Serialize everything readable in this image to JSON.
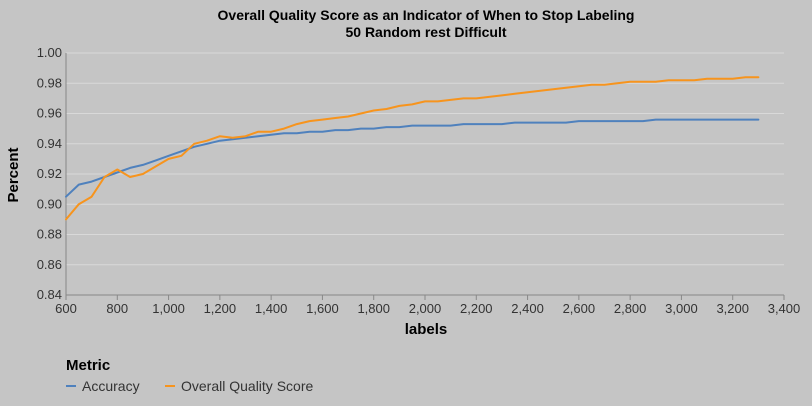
{
  "chart_data": {
    "type": "line",
    "title": "Overall Quality Score as an Indicator of When to Stop Labeling",
    "subtitle": "50 Random rest Difficult",
    "xlabel": "labels",
    "ylabel": "Percent",
    "xlim": [
      600,
      3400
    ],
    "ylim": [
      0.84,
      1.0
    ],
    "x_ticks": [
      600,
      800,
      1000,
      1200,
      1400,
      1600,
      1800,
      2000,
      2200,
      2400,
      2600,
      2800,
      3000,
      3200,
      3400
    ],
    "x_tick_labels": [
      "600",
      "800",
      "1,000",
      "1,200",
      "1,400",
      "1,600",
      "1,800",
      "2,000",
      "2,200",
      "2,400",
      "2,600",
      "2,800",
      "3,000",
      "3,200",
      "3,400"
    ],
    "y_ticks": [
      0.84,
      0.86,
      0.88,
      0.9,
      0.92,
      0.94,
      0.96,
      0.98,
      1.0
    ],
    "y_tick_labels": [
      "0.84",
      "0.86",
      "0.88",
      "0.90",
      "0.92",
      "0.94",
      "0.96",
      "0.98",
      "1.00"
    ],
    "grid": true,
    "legend": {
      "title": "Metric",
      "position": "bottom-left"
    },
    "x": [
      600,
      650,
      700,
      750,
      800,
      850,
      900,
      950,
      1000,
      1050,
      1100,
      1150,
      1200,
      1250,
      1300,
      1350,
      1400,
      1450,
      1500,
      1550,
      1600,
      1650,
      1700,
      1750,
      1800,
      1850,
      1900,
      1950,
      2000,
      2050,
      2100,
      2150,
      2200,
      2250,
      2300,
      2350,
      2400,
      2450,
      2500,
      2550,
      2600,
      2650,
      2700,
      2750,
      2800,
      2850,
      2900,
      2950,
      3000,
      3050,
      3100,
      3150,
      3200,
      3250,
      3300
    ],
    "series": [
      {
        "name": "Accuracy",
        "color": "#4f81bd",
        "values": [
          0.905,
          0.913,
          0.915,
          0.918,
          0.921,
          0.924,
          0.926,
          0.929,
          0.932,
          0.935,
          0.938,
          0.94,
          0.942,
          0.943,
          0.944,
          0.945,
          0.946,
          0.947,
          0.947,
          0.948,
          0.948,
          0.949,
          0.949,
          0.95,
          0.95,
          0.951,
          0.951,
          0.952,
          0.952,
          0.952,
          0.952,
          0.953,
          0.953,
          0.953,
          0.953,
          0.954,
          0.954,
          0.954,
          0.954,
          0.954,
          0.955,
          0.955,
          0.955,
          0.955,
          0.955,
          0.955,
          0.956,
          0.956,
          0.956,
          0.956,
          0.956,
          0.956,
          0.956,
          0.956,
          0.956
        ]
      },
      {
        "name": "Overall Quality Score",
        "color": "#f7941d",
        "values": [
          0.89,
          0.9,
          0.905,
          0.918,
          0.923,
          0.918,
          0.92,
          0.925,
          0.93,
          0.932,
          0.94,
          0.942,
          0.945,
          0.944,
          0.945,
          0.948,
          0.948,
          0.95,
          0.953,
          0.955,
          0.956,
          0.957,
          0.958,
          0.96,
          0.962,
          0.963,
          0.965,
          0.966,
          0.968,
          0.968,
          0.969,
          0.97,
          0.97,
          0.971,
          0.972,
          0.973,
          0.974,
          0.975,
          0.976,
          0.977,
          0.978,
          0.979,
          0.979,
          0.98,
          0.981,
          0.981,
          0.981,
          0.982,
          0.982,
          0.982,
          0.983,
          0.983,
          0.983,
          0.984,
          0.984
        ]
      }
    ]
  }
}
